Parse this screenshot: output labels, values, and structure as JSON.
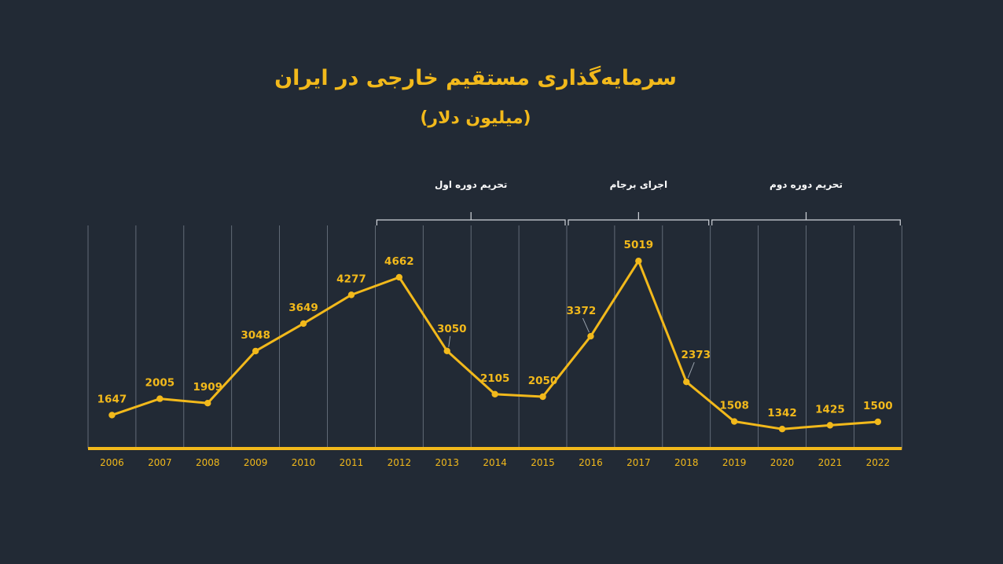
{
  "colors": {
    "background": "#222a35",
    "accent": "#f2b91b",
    "gridline": "#8c96a3",
    "bracket": "#d0d4da",
    "period_label": "#ffffff",
    "leader": "#9aa3ad"
  },
  "chart_data": {
    "type": "line",
    "title": "سرمایه‌گذاری مستقیم خارجی در ایران",
    "subtitle": "(میلیون دلار)",
    "categories": [
      "2006",
      "2007",
      "2008",
      "2009",
      "2010",
      "2011",
      "2012",
      "2013",
      "2014",
      "2015",
      "2016",
      "2017",
      "2018",
      "2019",
      "2020",
      "2021",
      "2022"
    ],
    "series": [
      {
        "values": [
          1647,
          2005,
          1909,
          3048,
          3649,
          4277,
          4662,
          3050,
          2105,
          2050,
          3372,
          5019,
          2373,
          1508,
          1342,
          1425,
          1500
        ]
      }
    ],
    "data_labels": true,
    "grid": "vertical",
    "periods": [
      {
        "label": "تحریم دوره اول",
        "from": "2012",
        "to": "2015"
      },
      {
        "label": "اجرای برجام",
        "from": "2016",
        "to": "2018"
      },
      {
        "label": "تحریم دوره دوم",
        "from": "2019",
        "to": "2022"
      }
    ]
  }
}
